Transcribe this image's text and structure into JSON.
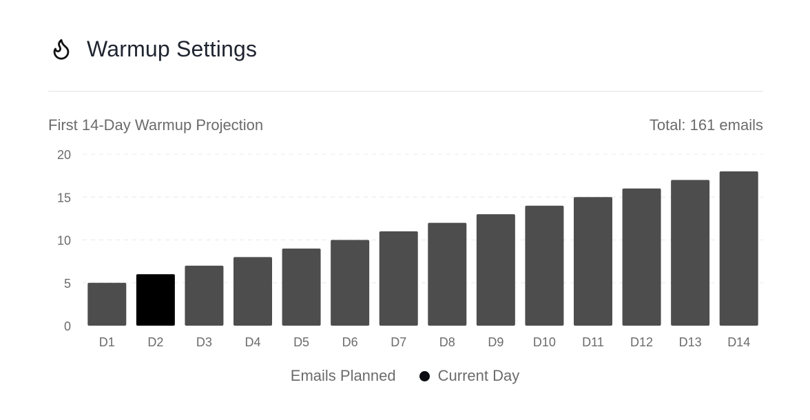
{
  "header": {
    "title": "Warmup Settings",
    "icon": "flame-icon"
  },
  "chart_data": {
    "type": "bar",
    "title": "First 14-Day Warmup Projection",
    "total_label": "Total: 161 emails",
    "categories": [
      "D1",
      "D2",
      "D3",
      "D4",
      "D5",
      "D6",
      "D7",
      "D8",
      "D9",
      "D10",
      "D11",
      "D12",
      "D13",
      "D14"
    ],
    "series": [
      {
        "name": "Emails Planned",
        "values": [
          5,
          6,
          7,
          8,
          9,
          10,
          11,
          12,
          13,
          14,
          15,
          16,
          17,
          18
        ]
      }
    ],
    "highlight": {
      "name": "Current Day",
      "category": "D2"
    },
    "ylim": [
      0,
      20
    ],
    "yticks": [
      0,
      5,
      10,
      15,
      20
    ],
    "grid": true,
    "legend": "bottom",
    "colors": {
      "bar": "#4d4d4d",
      "highlight": "#000000",
      "grid": "#e8e8e8",
      "text": "#6b6b6b"
    }
  },
  "legend": {
    "series_label": "Emails Planned",
    "highlight_label": "Current Day"
  }
}
